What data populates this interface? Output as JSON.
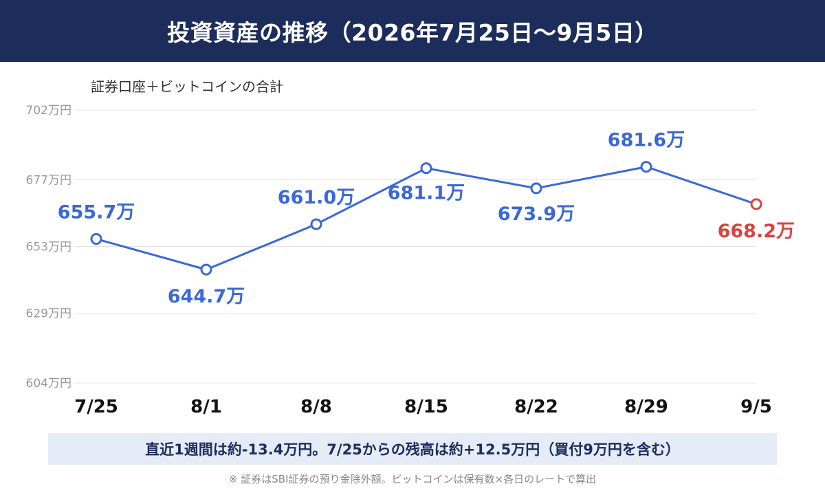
{
  "header": {
    "title": "投資資産の推移（2026年7月25日〜9月5日）"
  },
  "subtitle": "証券口座＋ビットコインの合計",
  "summary": "直近1週間は約-13.4万円。7/25からの残高は約+12.5万円（買付9万円を含む）",
  "footnote": "※ 証券はSBI証券の預り金除外額。ビットコインは保有数×各日のレートで算出",
  "colors": {
    "header_bg": "#1c2c5b",
    "series": "#3a68d8",
    "highlight": "#d9443f",
    "grid": "#e3e3e3"
  },
  "chart_data": {
    "type": "line",
    "title": "投資資産の推移（2026年7月25日〜9月5日）",
    "subtitle": "証券口座＋ビットコインの合計",
    "categories": [
      "7/25",
      "8/1",
      "8/8",
      "8/15",
      "8/22",
      "8/29",
      "9/5"
    ],
    "values": [
      655.7,
      644.7,
      661.0,
      681.1,
      673.9,
      681.6,
      668.2
    ],
    "data_labels": [
      "655.7万",
      "644.7万",
      "661.0万",
      "681.1万",
      "673.9万",
      "681.6万",
      "668.2万"
    ],
    "highlight_index": 6,
    "ylim": [
      604,
      702
    ],
    "y_ticks": [
      604,
      629,
      653,
      677,
      702
    ],
    "y_tick_labels": [
      "604万円",
      "629万円",
      "653万円",
      "677万円",
      "702万円"
    ],
    "unit": "万円",
    "grid": true,
    "legend": "none"
  }
}
